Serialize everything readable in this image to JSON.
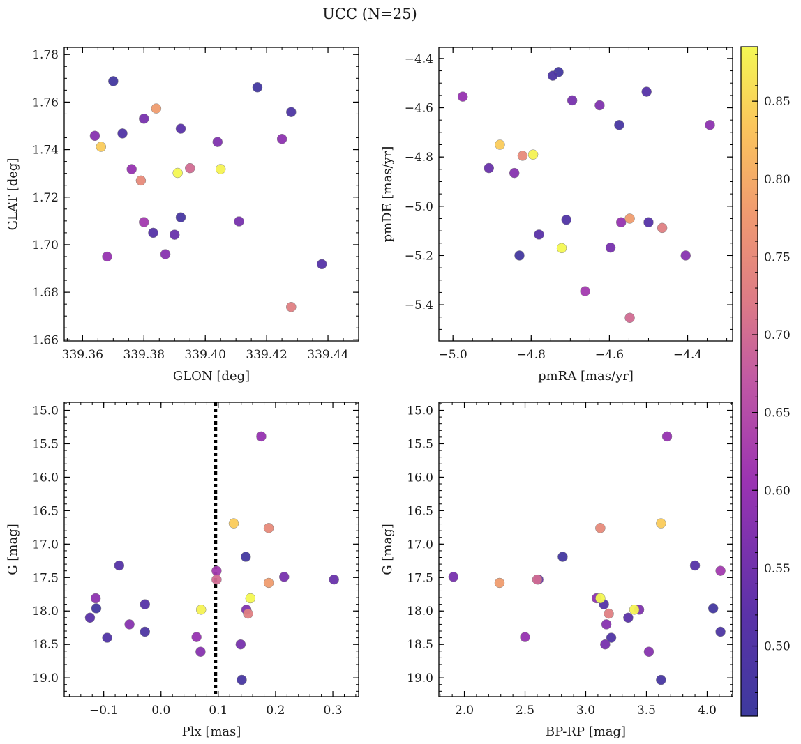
{
  "chart_data": {
    "suptitle": "UCC (N=25)",
    "colorbar": {
      "range": [
        0.455,
        0.885
      ],
      "ticks": [
        0.5,
        0.55,
        0.6,
        0.65,
        0.7,
        0.75,
        0.8,
        0.85
      ],
      "tick_labels": [
        "0.50",
        "0.55",
        "0.60",
        "0.65",
        "0.70",
        "0.75",
        "0.80",
        "0.85"
      ],
      "colormap": "plasma"
    },
    "members": [
      {
        "glon": 339.37,
        "glat": 1.7688,
        "pmra": -4.73,
        "pmde": -4.455,
        "plx": 0.148,
        "g": 17.19,
        "bprp": 2.81,
        "prob": 0.47
      },
      {
        "glon": 339.428,
        "glat": 1.7558,
        "pmra": -4.745,
        "pmde": -4.47,
        "plx": -0.028,
        "g": 18.31,
        "bprp": 4.11,
        "prob": 0.49
      },
      {
        "glon": 339.438,
        "glat": 1.6918,
        "pmra": -4.505,
        "pmde": -4.535,
        "plx": -0.073,
        "g": 17.32,
        "bprp": 3.9,
        "prob": 0.51
      },
      {
        "glon": 339.392,
        "glat": 1.7115,
        "pmra": -4.575,
        "pmde": -4.67,
        "plx": 0.141,
        "g": 19.03,
        "bprp": 3.62,
        "prob": 0.48
      },
      {
        "glon": 339.383,
        "glat": 1.705,
        "pmra": -4.5,
        "pmde": -5.065,
        "plx": -0.028,
        "g": 17.9,
        "bprp": 3.15,
        "prob": 0.51
      },
      {
        "glon": 339.373,
        "glat": 1.7468,
        "pmra": -4.71,
        "pmde": -5.055,
        "plx": -0.094,
        "g": 18.4,
        "bprp": 3.21,
        "prob": 0.5
      },
      {
        "glon": 339.392,
        "glat": 1.7488,
        "pmra": -4.78,
        "pmde": -5.115,
        "plx": -0.124,
        "g": 18.1,
        "bprp": 3.35,
        "prob": 0.52
      },
      {
        "glon": 339.38,
        "glat": 1.753,
        "pmra": -4.695,
        "pmde": -4.57,
        "plx": 0.139,
        "g": 18.5,
        "bprp": 3.16,
        "prob": 0.56
      },
      {
        "glon": 339.417,
        "glat": 1.7662,
        "pmra": -4.83,
        "pmde": -5.2,
        "plx": -0.113,
        "g": 17.96,
        "bprp": 4.05,
        "prob": 0.47
      },
      {
        "glon": 339.404,
        "glat": 1.7432,
        "pmra": -4.625,
        "pmde": -4.59,
        "plx": 0.149,
        "g": 17.98,
        "bprp": 3.44,
        "prob": 0.57
      },
      {
        "glon": 339.411,
        "glat": 1.7098,
        "pmra": -4.597,
        "pmde": -5.168,
        "plx": 0.215,
        "g": 17.49,
        "bprp": 1.91,
        "prob": 0.56
      },
      {
        "glon": 339.39,
        "glat": 1.7042,
        "pmra": -4.908,
        "pmde": -4.845,
        "plx": 0.302,
        "g": 17.53,
        "bprp": 2.61,
        "prob": 0.54
      },
      {
        "glon": 339.364,
        "glat": 1.7458,
        "pmra": -4.843,
        "pmde": -4.865,
        "plx": -0.055,
        "g": 18.2,
        "bprp": 3.17,
        "prob": 0.58
      },
      {
        "glon": 339.387,
        "glat": 1.696,
        "pmra": -4.405,
        "pmde": -5.2,
        "plx": 0.069,
        "g": 18.61,
        "bprp": 3.52,
        "prob": 0.58
      },
      {
        "glon": 339.425,
        "glat": 1.7445,
        "pmra": -4.343,
        "pmde": -4.67,
        "plx": -0.114,
        "g": 17.81,
        "bprp": 3.09,
        "prob": 0.59
      },
      {
        "glon": 339.368,
        "glat": 1.695,
        "pmra": -4.57,
        "pmde": -5.065,
        "plx": 0.062,
        "g": 18.39,
        "bprp": 2.5,
        "prob": 0.6
      },
      {
        "glon": 339.376,
        "glat": 1.7318,
        "pmra": -4.975,
        "pmde": -4.555,
        "plx": 0.175,
        "g": 15.39,
        "bprp": 3.67,
        "prob": 0.6
      },
      {
        "glon": 339.38,
        "glat": 1.7095,
        "pmra": -4.662,
        "pmde": -5.345,
        "plx": 0.097,
        "g": 17.4,
        "bprp": 4.11,
        "prob": 0.62
      },
      {
        "glon": 339.395,
        "glat": 1.7322,
        "pmra": -4.548,
        "pmde": -5.453,
        "plx": 0.097,
        "g": 17.53,
        "bprp": 2.6,
        "prob": 0.7
      },
      {
        "glon": 339.428,
        "glat": 1.6738,
        "pmra": -4.465,
        "pmde": -5.088,
        "plx": 0.152,
        "g": 18.04,
        "bprp": 3.19,
        "prob": 0.73
      },
      {
        "glon": 339.379,
        "glat": 1.727,
        "pmra": -4.822,
        "pmde": -4.795,
        "plx": 0.188,
        "g": 16.76,
        "bprp": 3.12,
        "prob": 0.75
      },
      {
        "glon": 339.384,
        "glat": 1.7573,
        "pmra": -4.548,
        "pmde": -5.05,
        "plx": 0.188,
        "g": 17.58,
        "bprp": 2.29,
        "prob": 0.78
      },
      {
        "glon": 339.366,
        "glat": 1.7412,
        "pmra": -4.88,
        "pmde": -4.75,
        "plx": 0.127,
        "g": 16.69,
        "bprp": 3.62,
        "prob": 0.84
      },
      {
        "glon": 339.405,
        "glat": 1.7318,
        "pmra": -4.795,
        "pmde": -4.79,
        "plx": 0.07,
        "g": 17.98,
        "bprp": 3.4,
        "prob": 0.88
      },
      {
        "glon": 339.391,
        "glat": 1.7302,
        "pmra": -4.722,
        "pmde": -5.17,
        "plx": 0.156,
        "g": 17.81,
        "bprp": 3.12,
        "prob": 0.89
      }
    ],
    "panels": [
      {
        "id": "glon-glat",
        "type": "scatter",
        "x_key": "glon",
        "y_key": "glat",
        "xlabel": "GLON [deg]",
        "ylabel": "GLAT [deg]",
        "xlim": [
          339.354,
          339.45
        ],
        "ylim": [
          1.6595,
          1.783
        ],
        "y_inverted": false,
        "xticks": [
          339.36,
          339.38,
          339.4,
          339.42,
          339.44
        ],
        "xtick_labels": [
          "339.36",
          "339.38",
          "339.40",
          "339.42",
          "339.44"
        ],
        "yticks": [
          1.66,
          1.68,
          1.7,
          1.72,
          1.74,
          1.76,
          1.78
        ],
        "ytick_labels": [
          "1.66",
          "1.68",
          "1.70",
          "1.72",
          "1.74",
          "1.76",
          "1.78"
        ],
        "minor_x": 0.005,
        "minor_y": 0.005
      },
      {
        "id": "pm",
        "type": "scatter",
        "x_key": "pmra",
        "y_key": "pmde",
        "xlabel": "pmRA [mas/yr]",
        "ylabel": "pmDE [mas/yr]",
        "xlim": [
          -5.036,
          -4.285
        ],
        "ylim": [
          -5.547,
          -4.355
        ],
        "y_inverted": false,
        "xticks": [
          -5.0,
          -4.8,
          -4.6,
          -4.4
        ],
        "xtick_labels": [
          "−5.0",
          "−4.8",
          "−4.6",
          "−4.4"
        ],
        "yticks": [
          -5.4,
          -5.2,
          -5.0,
          -4.8,
          -4.6,
          -4.4
        ],
        "ytick_labels": [
          "−5.4",
          "−5.2",
          "−5.0",
          "−4.8",
          "−4.6",
          "−4.4"
        ],
        "minor_x": 0.05,
        "minor_y": 0.05
      },
      {
        "id": "plx-g",
        "type": "scatter",
        "x_key": "plx",
        "y_key": "g",
        "xlabel": "Plx [mas]",
        "ylabel": "G [mag]",
        "xlim": [
          -0.169,
          0.345
        ],
        "ylim": [
          14.88,
          19.28
        ],
        "y_inverted": true,
        "xticks": [
          -0.1,
          0.0,
          0.1,
          0.2,
          0.3
        ],
        "xtick_labels": [
          "−0.1",
          "0.0",
          "0.1",
          "0.2",
          "0.3"
        ],
        "yticks": [
          15.0,
          15.5,
          16.0,
          16.5,
          17.0,
          17.5,
          18.0,
          18.5,
          19.0
        ],
        "ytick_labels": [
          "15.0",
          "15.5",
          "16.0",
          "16.5",
          "17.0",
          "17.5",
          "18.0",
          "18.5",
          "19.0"
        ],
        "minor_x": 0.02,
        "minor_y": 0.1,
        "vline": {
          "x": 0.095,
          "style": "dotted",
          "color": "#000000"
        }
      },
      {
        "id": "cmd",
        "type": "scatter",
        "x_key": "bprp",
        "y_key": "g",
        "xlabel": "BP-RP [mag]",
        "ylabel": "G [mag]",
        "xlim": [
          1.79,
          4.21
        ],
        "ylim": [
          14.88,
          19.28
        ],
        "y_inverted": true,
        "xticks": [
          2.0,
          2.5,
          3.0,
          3.5,
          4.0
        ],
        "xtick_labels": [
          "2.0",
          "2.5",
          "3.0",
          "3.5",
          "4.0"
        ],
        "yticks": [
          15.0,
          15.5,
          16.0,
          16.5,
          17.0,
          17.5,
          18.0,
          18.5,
          19.0
        ],
        "ytick_labels": [
          "15.0",
          "15.5",
          "16.0",
          "16.5",
          "17.0",
          "17.5",
          "18.0",
          "18.5",
          "19.0"
        ],
        "minor_x": 0.1,
        "minor_y": 0.1
      }
    ]
  }
}
